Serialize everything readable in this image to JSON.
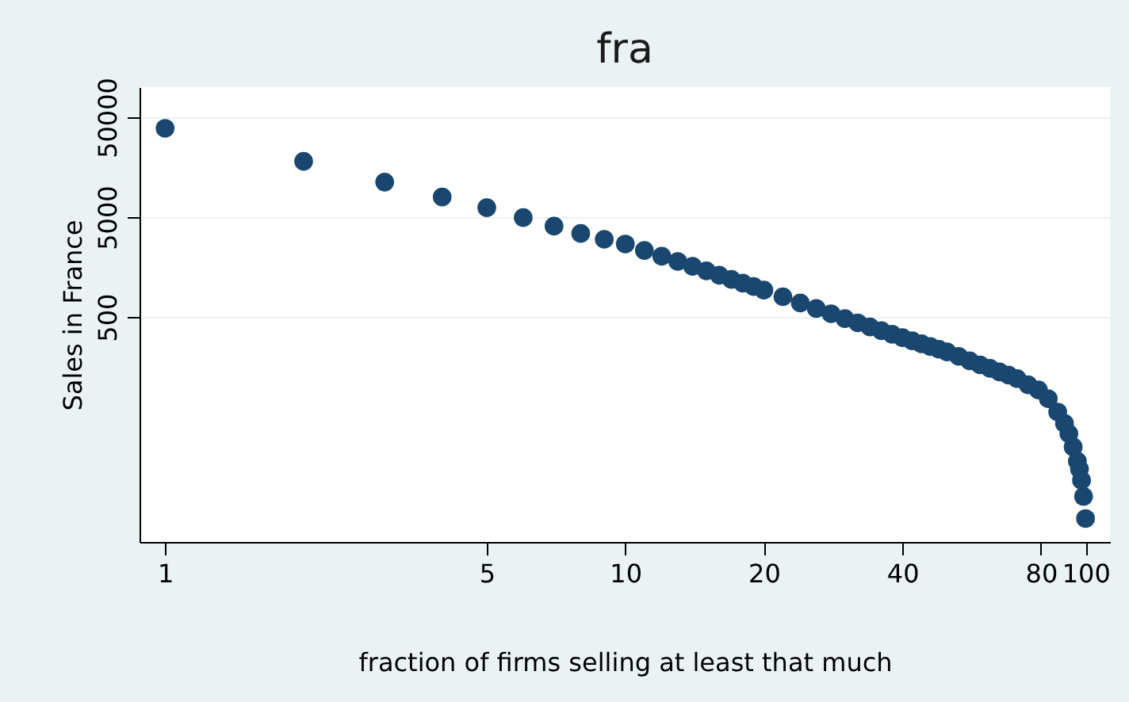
{
  "chart_data": {
    "type": "scatter",
    "title": "fra",
    "xlabel": "fraction of firms selling at least that much",
    "ylabel": "Sales in France",
    "x": [
      1,
      2,
      3,
      4,
      5,
      6,
      7,
      8,
      9,
      10,
      11,
      12,
      13,
      14,
      15,
      16,
      17,
      18,
      19,
      20,
      22,
      24,
      26,
      28,
      30,
      32,
      34,
      36,
      38,
      40,
      42,
      44,
      46,
      48,
      50,
      53,
      56,
      59,
      62,
      65,
      68,
      71,
      75,
      79,
      83,
      87,
      90,
      92,
      94,
      96,
      97,
      98,
      99,
      100
    ],
    "series": [
      {
        "color": "#1a476f",
        "values": [
          38700,
          18100,
          11200,
          7950,
          6220,
          4940,
          4060,
          3430,
          3000,
          2690,
          2320,
          2030,
          1800,
          1610,
          1450,
          1310,
          1190,
          1090,
          1010,
          931,
          798,
          692,
          608,
          539,
          482,
          437,
          398,
          365,
          336,
          311,
          289,
          270,
          253,
          238,
          224,
          202,
          182,
          166,
          153,
          141,
          131,
          121,
          105,
          93,
          76,
          56,
          43,
          34,
          25,
          18,
          15,
          11.6,
          8,
          4.8
        ]
      }
    ],
    "log": "xy",
    "xlim": [
      0.88,
      113
    ],
    "ylim": [
      2.8,
      100000
    ],
    "xticks": [
      1,
      5,
      10,
      20,
      40,
      80,
      100
    ],
    "yticks": [
      500,
      5000,
      50000
    ],
    "grid": "y",
    "marker": "circle"
  }
}
